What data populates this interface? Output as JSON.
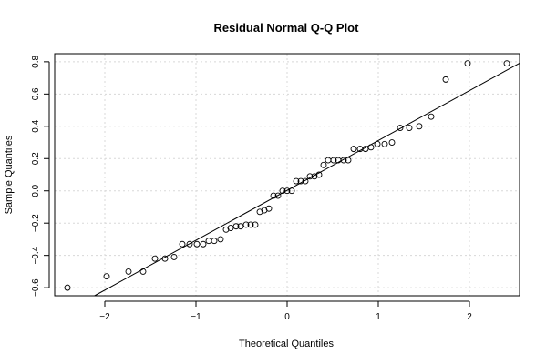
{
  "chart_data": {
    "type": "scatter",
    "title": "Residual Normal Q-Q Plot",
    "xlabel": "Theoretical Quantiles",
    "ylabel": "Sample Quantiles",
    "xlim": [
      -2.55,
      2.55
    ],
    "ylim": [
      -0.65,
      0.85
    ],
    "xticks": [
      -2,
      -1,
      0,
      1,
      2
    ],
    "xtick_labels": [
      "−2",
      "−1",
      "0",
      "1",
      "2"
    ],
    "yticks": [
      -0.6,
      -0.4,
      -0.2,
      0.0,
      0.2,
      0.4,
      0.6,
      0.8
    ],
    "ytick_labels": [
      "−0.6",
      "−0.4",
      "−0.2",
      "0.0",
      "0.2",
      "0.4",
      "0.6",
      "0.8"
    ],
    "grid": true,
    "reference_line": {
      "intercept": 0.003,
      "slope": 0.309
    },
    "series": [
      {
        "x": [
          -2.41,
          -1.98,
          -1.74,
          -1.58,
          -1.45,
          -1.34,
          -1.24,
          -1.15,
          -1.07,
          -0.99,
          -0.92,
          -0.86,
          -0.8,
          -0.73,
          -0.67,
          -0.62,
          -0.56,
          -0.51,
          -0.45,
          -0.4,
          -0.35,
          -0.3,
          -0.25,
          -0.2,
          -0.15,
          -0.1,
          -0.05,
          0.0,
          0.05,
          0.1,
          0.15,
          0.2,
          0.25,
          0.3,
          0.35,
          0.4,
          0.45,
          0.51,
          0.56,
          0.62,
          0.67,
          0.73,
          0.8,
          0.86,
          0.92,
          0.99,
          1.07,
          1.15,
          1.24,
          1.34,
          1.45,
          1.58,
          1.74,
          1.98,
          2.41
        ],
        "y": [
          -0.6,
          -0.53,
          -0.5,
          -0.5,
          -0.42,
          -0.42,
          -0.41,
          -0.33,
          -0.33,
          -0.33,
          -0.33,
          -0.31,
          -0.31,
          -0.3,
          -0.24,
          -0.23,
          -0.22,
          -0.22,
          -0.21,
          -0.21,
          -0.21,
          -0.13,
          -0.12,
          -0.11,
          -0.03,
          -0.03,
          0.0,
          0.0,
          0.0,
          0.06,
          0.06,
          0.06,
          0.09,
          0.09,
          0.1,
          0.16,
          0.19,
          0.19,
          0.19,
          0.19,
          0.19,
          0.26,
          0.26,
          0.26,
          0.27,
          0.29,
          0.29,
          0.3,
          0.39,
          0.39,
          0.4,
          0.46,
          0.69,
          0.79,
          0.79
        ]
      }
    ]
  }
}
